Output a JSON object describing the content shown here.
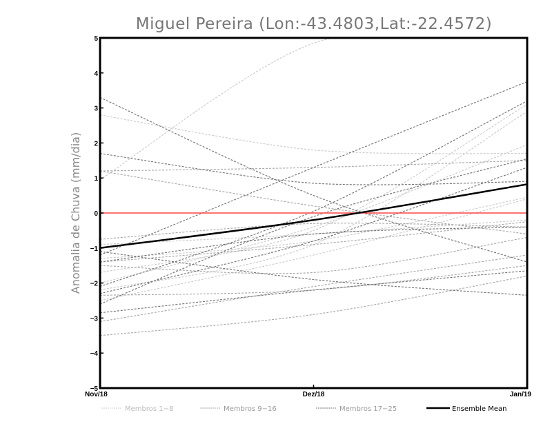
{
  "chart_data": {
    "type": "line",
    "title": "Miguel Pereira (Lon:-43.4803,Lat:-22.4572)",
    "xlabel": "",
    "ylabel": "Anomalia de Chuva (mm/dia)",
    "categories": [
      "Nov/18",
      "Dez/18",
      "Jan/19"
    ],
    "ylim": [
      -5,
      5
    ],
    "yticks": [
      "-5",
      "-4",
      "-3",
      "-2",
      "-1",
      "0",
      "1",
      "2",
      "3",
      "4",
      "5"
    ],
    "reference_line": {
      "value": 0,
      "color": "#ff4444"
    },
    "legend": {
      "placement": "bottom",
      "entries": [
        {
          "label": "Membros 1-8",
          "color": "#cccccc",
          "style": "dashed"
        },
        {
          "label": "Membros 9-16",
          "color": "#aaaaaa",
          "style": "dashed"
        },
        {
          "label": "Membros 17-25",
          "color": "#777777",
          "style": "dashed"
        },
        {
          "label": "Ensemble Mean",
          "color": "#000000",
          "style": "solid"
        }
      ]
    },
    "series": [
      {
        "name": "Membro 1",
        "group": 0,
        "values": [
          0.95,
          4.85,
          5.2
        ]
      },
      {
        "name": "Membro 2",
        "group": 0,
        "values": [
          2.8,
          1.8,
          1.7
        ]
      },
      {
        "name": "Membro 3",
        "group": 0,
        "values": [
          -1.7,
          -0.5,
          3.1
        ]
      },
      {
        "name": "Membro 4",
        "group": 0,
        "values": [
          -2.2,
          -0.9,
          2.9
        ]
      },
      {
        "name": "Membro 5",
        "group": 0,
        "values": [
          -2.5,
          -1.2,
          0.4
        ]
      },
      {
        "name": "Membro 6",
        "group": 0,
        "values": [
          -1.3,
          -0.8,
          0.45
        ]
      },
      {
        "name": "Membro 7",
        "group": 0,
        "values": [
          -2.0,
          -0.4,
          1.95
        ]
      },
      {
        "name": "Membro 8",
        "group": 0,
        "values": [
          -0.9,
          -0.6,
          -0.2
        ]
      },
      {
        "name": "Membro 9",
        "group": 1,
        "values": [
          1.2,
          1.3,
          1.5
        ]
      },
      {
        "name": "Membro 10",
        "group": 1,
        "values": [
          1.2,
          0.2,
          -0.6
        ]
      },
      {
        "name": "Membro 11",
        "group": 1,
        "values": [
          -0.75,
          -0.3,
          -0.4
        ]
      },
      {
        "name": "Membro 12",
        "group": 1,
        "values": [
          -2.35,
          -2.2,
          -1.5
        ]
      },
      {
        "name": "Membro 13",
        "group": 1,
        "values": [
          -1.5,
          -1.7,
          -0.7
        ]
      },
      {
        "name": "Membro 14",
        "group": 1,
        "values": [
          -3.1,
          -2.1,
          -1.2
        ]
      },
      {
        "name": "Membro 15",
        "group": 1,
        "values": [
          -3.5,
          -2.9,
          -1.8
        ]
      },
      {
        "name": "Membro 16",
        "group": 1,
        "values": [
          -1.4,
          -0.9,
          -0.25
        ]
      },
      {
        "name": "Membro 17",
        "group": 2,
        "values": [
          3.3,
          0.5,
          -1.4
        ]
      },
      {
        "name": "Membro 18",
        "group": 2,
        "values": [
          1.7,
          0.85,
          0.9
        ]
      },
      {
        "name": "Membro 19",
        "group": 2,
        "values": [
          -1.2,
          1.3,
          3.75
        ]
      },
      {
        "name": "Membro 20",
        "group": 2,
        "values": [
          -2.1,
          0.05,
          3.2
        ]
      },
      {
        "name": "Membro 21",
        "group": 2,
        "values": [
          -2.6,
          -0.1,
          1.55
        ]
      },
      {
        "name": "Membro 22",
        "group": 2,
        "values": [
          -1.1,
          -1.9,
          -2.35
        ]
      },
      {
        "name": "Membro 23",
        "group": 2,
        "values": [
          -2.85,
          -2.2,
          -1.65
        ]
      },
      {
        "name": "Membro 24",
        "group": 2,
        "values": [
          -2.3,
          -0.8,
          1.3
        ]
      },
      {
        "name": "Membro 25",
        "group": 2,
        "values": [
          -1.4,
          -0.6,
          -0.4
        ]
      },
      {
        "name": "Ensemble Mean",
        "group": 3,
        "values": [
          -1.0,
          -0.2,
          0.82
        ]
      }
    ]
  }
}
